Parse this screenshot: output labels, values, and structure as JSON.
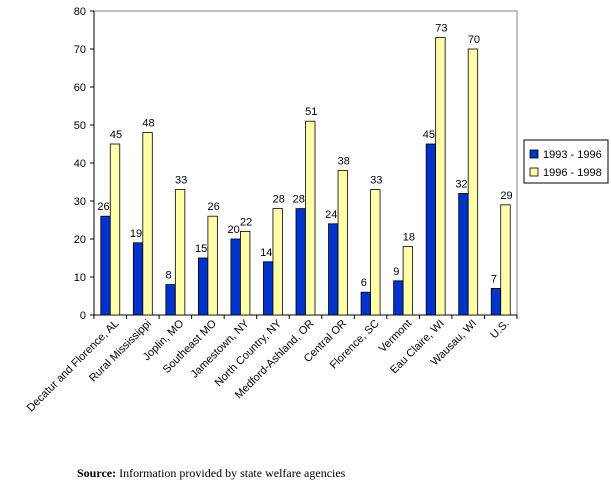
{
  "chart_data": {
    "type": "bar",
    "title": "",
    "xlabel": "",
    "ylabel": "",
    "ylim": [
      0,
      80
    ],
    "yticks": [
      0,
      10,
      20,
      30,
      40,
      50,
      60,
      70,
      80
    ],
    "grid": false,
    "legend_position": "right",
    "categories": [
      "Decatur and Florence, AL",
      "Rural Mississippi",
      "Joplin, MO",
      "Southeast MO",
      "Jamestown, NY",
      "North Country, NY",
      "Medford-Ashland, OR",
      "Central OR",
      "Florence, SC",
      "Vermont",
      "Eau Claire, WI",
      "Wausau, WI",
      "U.S."
    ],
    "series": [
      {
        "name": "1993 - 1996",
        "color": "#0033cc",
        "values": [
          26,
          19,
          8,
          15,
          20,
          14,
          28,
          24,
          6,
          9,
          45,
          32,
          7
        ],
        "labels": [
          "26",
          "19",
          "8",
          "15",
          "20",
          "14",
          "28",
          "24",
          "6",
          "9",
          "45",
          "32",
          "7"
        ]
      },
      {
        "name": "1996 - 1998",
        "color": "#ffffaa",
        "values": [
          45,
          48,
          33,
          26,
          22,
          28,
          51,
          38,
          33,
          18,
          73,
          70,
          29
        ],
        "labels": [
          "45",
          "48",
          "33",
          "26",
          "22",
          "28",
          "51",
          "38",
          "33",
          "18",
          "73",
          "70",
          "29"
        ]
      }
    ]
  },
  "source": {
    "label": "Source:",
    "text": " Information provided by state welfare agencies"
  }
}
